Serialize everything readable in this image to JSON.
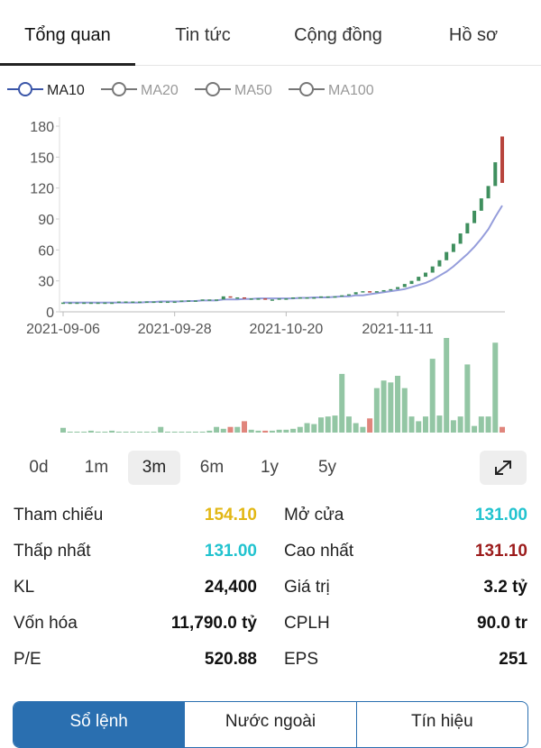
{
  "tabs": {
    "items": [
      "Tổng quan",
      "Tin tức",
      "Cộng đồng",
      "Hồ sơ"
    ],
    "active": 0
  },
  "ma_legend": [
    {
      "name": "MA10",
      "active": true
    },
    {
      "name": "MA20",
      "active": false
    },
    {
      "name": "MA50",
      "active": false
    },
    {
      "name": "MA100",
      "active": false
    }
  ],
  "chart_data": {
    "type": "candlestick",
    "categories": [
      "2021-09-06",
      null,
      null,
      null,
      null,
      null,
      null,
      null,
      null,
      null,
      null,
      null,
      null,
      null,
      null,
      null,
      "2021-09-28",
      null,
      null,
      null,
      null,
      null,
      null,
      null,
      null,
      null,
      null,
      null,
      null,
      null,
      null,
      null,
      "2021-10-20",
      null,
      null,
      null,
      null,
      null,
      null,
      null,
      null,
      null,
      null,
      null,
      null,
      null,
      null,
      null,
      "2021-11-11",
      null,
      null,
      null,
      null,
      null,
      null,
      null,
      null,
      null,
      null,
      null,
      null,
      null,
      null,
      null
    ],
    "open": [
      9,
      9,
      9,
      9,
      9,
      9,
      9,
      9,
      9,
      10,
      10,
      10,
      10,
      10,
      10,
      10,
      10,
      10,
      11,
      11,
      11,
      12,
      12,
      12,
      15,
      14,
      14,
      13,
      13,
      13,
      12,
      12,
      13,
      13,
      14,
      14,
      14,
      14,
      15,
      15,
      15,
      16,
      17,
      19,
      20,
      19,
      20,
      21,
      22,
      24,
      27,
      30,
      34,
      38,
      44,
      50,
      58,
      66,
      76,
      86,
      98,
      110,
      122,
      170
    ],
    "close": [
      9,
      9,
      9,
      9,
      9,
      9,
      9,
      9,
      10,
      10,
      10,
      10,
      10,
      10,
      10,
      10,
      10,
      11,
      11,
      11,
      12,
      12,
      12,
      15,
      14,
      14,
      13,
      13,
      13,
      12,
      12,
      13,
      13,
      14,
      14,
      14,
      14,
      15,
      15,
      15,
      16,
      17,
      19,
      20,
      19,
      20,
      21,
      22,
      24,
      27,
      30,
      34,
      38,
      44,
      50,
      58,
      66,
      76,
      86,
      98,
      110,
      122,
      145,
      125
    ],
    "ma10": [
      9,
      9,
      9,
      9,
      9,
      9,
      9,
      9,
      9,
      9,
      9,
      9,
      9.5,
      9.5,
      10,
      10,
      10,
      10,
      10.5,
      10.5,
      11,
      11,
      11,
      12,
      12,
      12,
      12.5,
      12.5,
      13,
      13,
      13,
      13,
      13,
      13,
      13.5,
      13.5,
      14,
      14,
      14,
      14.5,
      15,
      15,
      16,
      16,
      17,
      18,
      19,
      20,
      21,
      22,
      24,
      26,
      28,
      31,
      35,
      39,
      44,
      50,
      56,
      63,
      71,
      80,
      92,
      103
    ],
    "volume": [
      5,
      1,
      1,
      1,
      2,
      1,
      1,
      2,
      1,
      1,
      1,
      1,
      1,
      1,
      6,
      1,
      1,
      1,
      1,
      1,
      1,
      2,
      6,
      4,
      6,
      6,
      12,
      3,
      2,
      2,
      2,
      3,
      3,
      4,
      6,
      10,
      9,
      16,
      17,
      18,
      62,
      17,
      10,
      6,
      15,
      47,
      55,
      53,
      60,
      47,
      17,
      12,
      17,
      78,
      18,
      100,
      13,
      17,
      72,
      7,
      17,
      17,
      95,
      6
    ],
    "ylim": [
      0,
      180
    ],
    "yticks": [
      0,
      30,
      60,
      90,
      120,
      150,
      180
    ],
    "volume_ylim": [
      0,
      100
    ],
    "up_color": "#3f8f5e",
    "down_color": "#b8453d",
    "volume_up_color": "#93c6a4",
    "volume_down_color": "#e0857c",
    "ma_color": "#959ddb"
  },
  "periods": {
    "items": [
      "0d",
      "1m",
      "3m",
      "6m",
      "1y",
      "5y"
    ],
    "active": 2
  },
  "stats": [
    [
      {
        "label": "Tham chiếu",
        "value": "154.10",
        "color": "#e2b714"
      },
      {
        "label": "Mở cửa",
        "value": "131.00",
        "color": "#22c3cf"
      }
    ],
    [
      {
        "label": "Thấp nhất",
        "value": "131.00",
        "color": "#22c3cf"
      },
      {
        "label": "Cao nhất",
        "value": "131.10",
        "color": "#9c1c1c"
      }
    ],
    [
      {
        "label": "KL",
        "value": "24,400",
        "color": "#111111"
      },
      {
        "label": "Giá trị",
        "value": "3.2 tỷ",
        "color": "#111111"
      }
    ],
    [
      {
        "label": "Vốn hóa",
        "value": "11,790.0 tỷ",
        "color": "#111111"
      },
      {
        "label": "CPLH",
        "value": "90.0 tr",
        "color": "#111111"
      }
    ],
    [
      {
        "label": "P/E",
        "value": "520.88",
        "color": "#111111"
      },
      {
        "label": "EPS",
        "value": "251",
        "color": "#111111"
      }
    ]
  ],
  "bottom_tabs": {
    "items": [
      "Sổ lệnh",
      "Nước ngoài",
      "Tín hiệu"
    ],
    "active": 0
  }
}
